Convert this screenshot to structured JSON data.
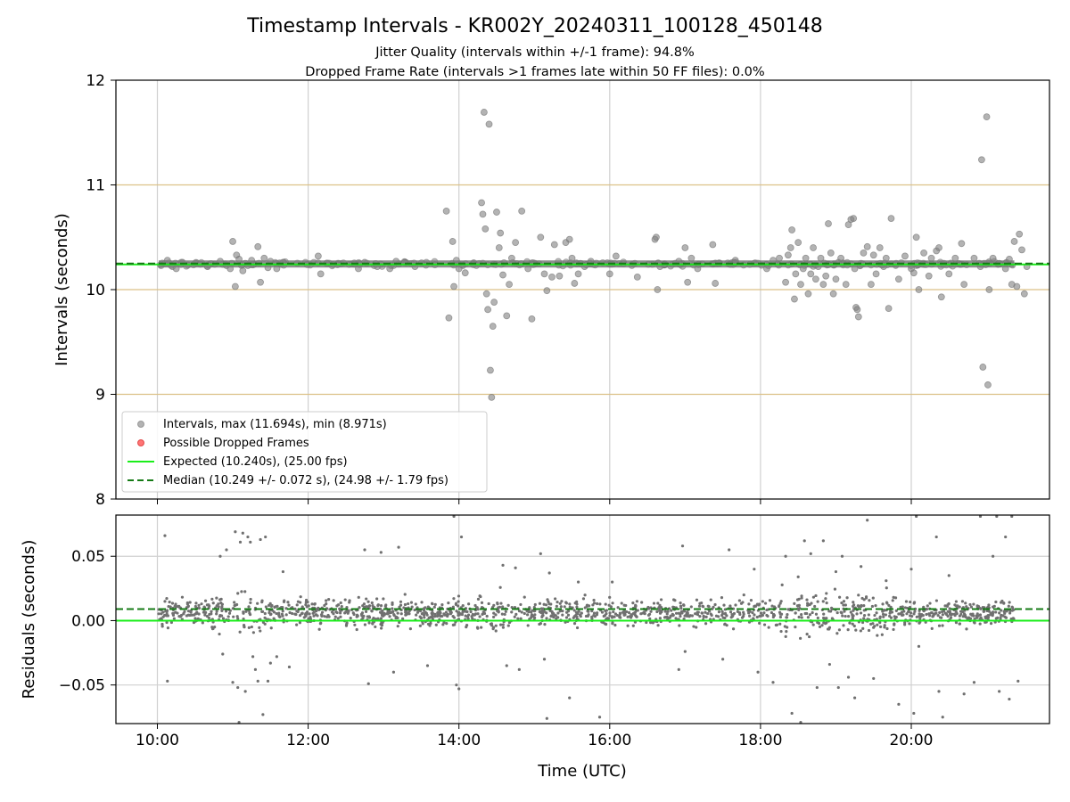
{
  "chart_data": {
    "title": "Timestamp Intervals - KR002Y_20240311_100128_450148",
    "subtitle_lines": [
      "Jitter Quality (intervals within +/-1 frame): 94.8%",
      "Dropped Frame Rate (intervals >1 frames late within 50 FF files): 0.0%"
    ],
    "xlabel": "Time (UTC)",
    "xlim": [
      "09:27",
      "21:50"
    ],
    "x_tick_labels": [
      "10:00",
      "12:00",
      "14:00",
      "16:00",
      "18:00",
      "20:00"
    ],
    "x_tick_hours": [
      10,
      12,
      14,
      16,
      18,
      20
    ],
    "panels": [
      {
        "type": "scatter",
        "ylabel": "Intervals (seconds)",
        "ylim": [
          8,
          12
        ],
        "y_tick_labels": [
          "8",
          "9",
          "10",
          "11",
          "12"
        ],
        "y_tick_values": [
          8,
          9,
          10,
          11,
          12
        ],
        "frame_boundary_lines": [
          9,
          10,
          11
        ],
        "grid": "vertical",
        "legend_position": "lower-left",
        "legend": [
          {
            "label": "Intervals, max (11.694s), min (8.971s)",
            "marker": "circle",
            "color": "#808080"
          },
          {
            "label": "Possible Dropped Frames",
            "marker": "circle",
            "color": "#ff3b3b"
          },
          {
            "label": "Expected (10.240s), (25.00 fps)",
            "marker": "solid-line",
            "color": "#1aee1a"
          },
          {
            "label": "Median (10.249 +/- 0.072 s), (24.98 +/- 1.79 fps)",
            "marker": "dashed-line",
            "color": "#157a15"
          }
        ],
        "expected_line": 10.24,
        "median_line": 10.249,
        "baseline_band": {
          "x": [
            "10:01",
            "21:22"
          ],
          "y": 10.245
        },
        "points": [
          [
            "10:08",
            10.28
          ],
          [
            "10:12",
            10.22
          ],
          [
            "10:15",
            10.2
          ],
          [
            "10:20",
            10.26
          ],
          [
            "10:30",
            10.25
          ],
          [
            "10:40",
            10.22
          ],
          [
            "10:50",
            10.27
          ],
          [
            "10:55",
            10.23
          ],
          [
            "10:58",
            10.2
          ],
          [
            "11:00",
            10.46
          ],
          [
            "11:02",
            10.03
          ],
          [
            "11:03",
            10.33
          ],
          [
            "11:05",
            10.29
          ],
          [
            "11:08",
            10.18
          ],
          [
            "11:10",
            10.25
          ],
          [
            "11:12",
            10.23
          ],
          [
            "11:15",
            10.28
          ],
          [
            "11:20",
            10.41
          ],
          [
            "11:22",
            10.07
          ],
          [
            "11:25",
            10.3
          ],
          [
            "11:28",
            10.21
          ],
          [
            "11:30",
            10.27
          ],
          [
            "11:35",
            10.2
          ],
          [
            "11:40",
            10.26
          ],
          [
            "12:08",
            10.32
          ],
          [
            "12:10",
            10.15
          ],
          [
            "12:40",
            10.2
          ],
          [
            "12:45",
            10.26
          ],
          [
            "12:55",
            10.22
          ],
          [
            "13:05",
            10.2
          ],
          [
            "13:10",
            10.27
          ],
          [
            "13:25",
            10.22
          ],
          [
            "13:50",
            10.75
          ],
          [
            "13:52",
            9.73
          ],
          [
            "13:55",
            10.46
          ],
          [
            "13:56",
            10.03
          ],
          [
            "13:58",
            10.28
          ],
          [
            "14:00",
            10.2
          ],
          [
            "14:05",
            10.16
          ],
          [
            "14:18",
            10.83
          ],
          [
            "14:19",
            10.72
          ],
          [
            "14:20",
            11.694
          ],
          [
            "14:21",
            10.58
          ],
          [
            "14:22",
            9.96
          ],
          [
            "14:23",
            9.81
          ],
          [
            "14:24",
            11.58
          ],
          [
            "14:25",
            9.23
          ],
          [
            "14:26",
            8.971
          ],
          [
            "14:27",
            9.65
          ],
          [
            "14:28",
            9.88
          ],
          [
            "14:30",
            10.74
          ],
          [
            "14:32",
            10.4
          ],
          [
            "14:33",
            10.54
          ],
          [
            "14:35",
            10.14
          ],
          [
            "14:38",
            9.75
          ],
          [
            "14:40",
            10.05
          ],
          [
            "14:42",
            10.3
          ],
          [
            "14:45",
            10.45
          ],
          [
            "14:50",
            10.75
          ],
          [
            "14:55",
            10.2
          ],
          [
            "14:58",
            9.72
          ],
          [
            "15:05",
            10.5
          ],
          [
            "15:08",
            10.15
          ],
          [
            "15:10",
            9.99
          ],
          [
            "15:14",
            10.12
          ],
          [
            "15:16",
            10.43
          ],
          [
            "15:20",
            10.13
          ],
          [
            "15:25",
            10.45
          ],
          [
            "15:28",
            10.48
          ],
          [
            "15:30",
            10.3
          ],
          [
            "15:32",
            10.06
          ],
          [
            "15:35",
            10.15
          ],
          [
            "15:40",
            10.22
          ],
          [
            "15:45",
            10.27
          ],
          [
            "16:00",
            10.15
          ],
          [
            "16:05",
            10.32
          ],
          [
            "16:20",
            10.25
          ],
          [
            "16:22",
            10.12
          ],
          [
            "16:36",
            10.48
          ],
          [
            "16:37",
            10.5
          ],
          [
            "16:38",
            10.0
          ],
          [
            "16:40",
            10.22
          ],
          [
            "16:55",
            10.27
          ],
          [
            "17:00",
            10.4
          ],
          [
            "17:02",
            10.07
          ],
          [
            "17:05",
            10.3
          ],
          [
            "17:10",
            10.2
          ],
          [
            "17:22",
            10.43
          ],
          [
            "17:24",
            10.06
          ],
          [
            "17:40",
            10.28
          ],
          [
            "17:55",
            10.25
          ],
          [
            "18:05",
            10.2
          ],
          [
            "18:10",
            10.28
          ],
          [
            "18:15",
            10.3
          ],
          [
            "18:20",
            10.07
          ],
          [
            "18:22",
            10.33
          ],
          [
            "18:24",
            10.4
          ],
          [
            "18:25",
            10.57
          ],
          [
            "18:27",
            9.91
          ],
          [
            "18:28",
            10.15
          ],
          [
            "18:30",
            10.45
          ],
          [
            "18:32",
            10.05
          ],
          [
            "18:34",
            10.2
          ],
          [
            "18:36",
            10.3
          ],
          [
            "18:38",
            9.96
          ],
          [
            "18:40",
            10.15
          ],
          [
            "18:42",
            10.4
          ],
          [
            "18:44",
            10.1
          ],
          [
            "18:46",
            10.22
          ],
          [
            "18:48",
            10.3
          ],
          [
            "18:50",
            10.05
          ],
          [
            "18:52",
            10.13
          ],
          [
            "18:54",
            10.63
          ],
          [
            "18:56",
            10.35
          ],
          [
            "18:58",
            9.96
          ],
          [
            "19:00",
            10.1
          ],
          [
            "19:02",
            10.26
          ],
          [
            "19:04",
            10.3
          ],
          [
            "19:08",
            10.05
          ],
          [
            "19:10",
            10.62
          ],
          [
            "19:12",
            10.67
          ],
          [
            "19:14",
            10.68
          ],
          [
            "19:15",
            10.2
          ],
          [
            "19:16",
            9.83
          ],
          [
            "19:17",
            9.81
          ],
          [
            "19:18",
            9.74
          ],
          [
            "19:20",
            10.25
          ],
          [
            "19:22",
            10.35
          ],
          [
            "19:25",
            10.41
          ],
          [
            "19:28",
            10.05
          ],
          [
            "19:30",
            10.33
          ],
          [
            "19:32",
            10.15
          ],
          [
            "19:35",
            10.4
          ],
          [
            "19:38",
            10.22
          ],
          [
            "19:40",
            10.3
          ],
          [
            "19:42",
            9.82
          ],
          [
            "19:44",
            10.68
          ],
          [
            "19:48",
            10.25
          ],
          [
            "19:50",
            10.1
          ],
          [
            "19:55",
            10.32
          ],
          [
            "20:00",
            10.2
          ],
          [
            "20:02",
            10.16
          ],
          [
            "20:04",
            10.5
          ],
          [
            "20:06",
            10.0
          ],
          [
            "20:10",
            10.35
          ],
          [
            "20:14",
            10.13
          ],
          [
            "20:16",
            10.3
          ],
          [
            "20:20",
            10.37
          ],
          [
            "20:22",
            10.4
          ],
          [
            "20:24",
            9.93
          ],
          [
            "20:26",
            10.25
          ],
          [
            "20:30",
            10.15
          ],
          [
            "20:35",
            10.3
          ],
          [
            "20:40",
            10.44
          ],
          [
            "20:42",
            10.05
          ],
          [
            "20:50",
            10.3
          ],
          [
            "20:55",
            10.22
          ],
          [
            "20:56",
            11.24
          ],
          [
            "20:57",
            9.26
          ],
          [
            "20:58",
            10.25
          ],
          [
            "21:00",
            11.65
          ],
          [
            "21:01",
            9.09
          ],
          [
            "21:02",
            10.0
          ],
          [
            "21:05",
            10.3
          ],
          [
            "21:10",
            10.25
          ],
          [
            "21:15",
            10.2
          ],
          [
            "21:18",
            10.29
          ],
          [
            "21:20",
            10.05
          ],
          [
            "21:22",
            10.46
          ],
          [
            "21:24",
            10.03
          ],
          [
            "21:26",
            10.53
          ],
          [
            "21:28",
            10.38
          ],
          [
            "21:30",
            9.96
          ],
          [
            "21:32",
            10.22
          ]
        ]
      },
      {
        "type": "scatter",
        "ylabel": "Residuals (seconds)",
        "ylim": [
          -0.08,
          0.082
        ],
        "y_tick_labels": [
          "−0.05",
          "0.00",
          "0.05"
        ],
        "y_tick_values": [
          -0.05,
          0.0,
          0.05
        ],
        "grid": "both",
        "expected_line": 0.0,
        "median_line": 0.009,
        "residual_band": {
          "x": [
            "10:01",
            "21:22"
          ],
          "center": 0.006,
          "half_width": 0.014
        },
        "outliers": [
          [
            "10:06",
            0.066
          ],
          [
            "10:08",
            -0.047
          ],
          [
            "10:50",
            0.05
          ],
          [
            "10:52",
            -0.026
          ],
          [
            "10:55",
            0.055
          ],
          [
            "11:00",
            -0.048
          ],
          [
            "11:02",
            0.069
          ],
          [
            "11:04",
            -0.052
          ],
          [
            "11:05",
            -0.079
          ],
          [
            "11:06",
            0.061
          ],
          [
            "11:08",
            0.068
          ],
          [
            "11:10",
            -0.055
          ],
          [
            "11:12",
            0.065
          ],
          [
            "11:14",
            0.061
          ],
          [
            "11:16",
            -0.028
          ],
          [
            "11:18",
            -0.038
          ],
          [
            "11:20",
            -0.047
          ],
          [
            "11:22",
            0.063
          ],
          [
            "11:24",
            -0.073
          ],
          [
            "11:26",
            0.065
          ],
          [
            "11:28",
            -0.047
          ],
          [
            "11:30",
            -0.033
          ],
          [
            "11:35",
            -0.028
          ],
          [
            "11:40",
            0.038
          ],
          [
            "11:45",
            -0.036
          ],
          [
            "12:45",
            0.055
          ],
          [
            "12:48",
            -0.049
          ],
          [
            "12:58",
            0.053
          ],
          [
            "13:08",
            -0.04
          ],
          [
            "13:12",
            0.057
          ],
          [
            "13:35",
            -0.035
          ],
          [
            "13:56",
            0.081
          ],
          [
            "13:58",
            -0.05
          ],
          [
            "14:00",
            -0.053
          ],
          [
            "14:02",
            0.065
          ],
          [
            "14:35",
            0.043
          ],
          [
            "14:38",
            -0.035
          ],
          [
            "14:45",
            0.041
          ],
          [
            "14:48",
            -0.038
          ],
          [
            "15:05",
            0.052
          ],
          [
            "15:08",
            -0.03
          ],
          [
            "15:10",
            -0.076
          ],
          [
            "15:12",
            0.037
          ],
          [
            "15:28",
            -0.06
          ],
          [
            "15:35",
            0.03
          ],
          [
            "15:52",
            -0.075
          ],
          [
            "16:02",
            0.03
          ],
          [
            "16:55",
            -0.038
          ],
          [
            "16:58",
            0.058
          ],
          [
            "17:00",
            -0.024
          ],
          [
            "17:30",
            -0.03
          ],
          [
            "17:35",
            0.055
          ],
          [
            "17:55",
            0.04
          ],
          [
            "17:58",
            -0.04
          ],
          [
            "18:10",
            -0.048
          ],
          [
            "18:20",
            0.05
          ],
          [
            "18:25",
            -0.072
          ],
          [
            "18:30",
            0.034
          ],
          [
            "18:32",
            -0.079
          ],
          [
            "18:35",
            0.062
          ],
          [
            "18:40",
            0.052
          ],
          [
            "18:45",
            -0.052
          ],
          [
            "18:50",
            0.062
          ],
          [
            "18:55",
            -0.034
          ],
          [
            "19:00",
            0.038
          ],
          [
            "19:02",
            -0.052
          ],
          [
            "19:05",
            0.05
          ],
          [
            "19:10",
            -0.044
          ],
          [
            "19:15",
            -0.06
          ],
          [
            "19:20",
            0.042
          ],
          [
            "19:25",
            0.078
          ],
          [
            "19:30",
            -0.045
          ],
          [
            "19:40",
            0.031
          ],
          [
            "19:50",
            -0.065
          ],
          [
            "20:00",
            0.04
          ],
          [
            "20:02",
            -0.072
          ],
          [
            "20:04",
            0.081
          ],
          [
            "20:06",
            -0.02
          ],
          [
            "20:20",
            0.065
          ],
          [
            "20:22",
            -0.055
          ],
          [
            "20:25",
            -0.075
          ],
          [
            "20:30",
            0.035
          ],
          [
            "20:42",
            -0.057
          ],
          [
            "20:50",
            -0.048
          ],
          [
            "20:55",
            0.081
          ],
          [
            "21:05",
            0.05
          ],
          [
            "21:08",
            0.081
          ],
          [
            "21:10",
            -0.055
          ],
          [
            "21:15",
            0.065
          ],
          [
            "21:18",
            -0.061
          ],
          [
            "21:20",
            0.081
          ],
          [
            "21:25",
            -0.047
          ]
        ]
      }
    ]
  }
}
